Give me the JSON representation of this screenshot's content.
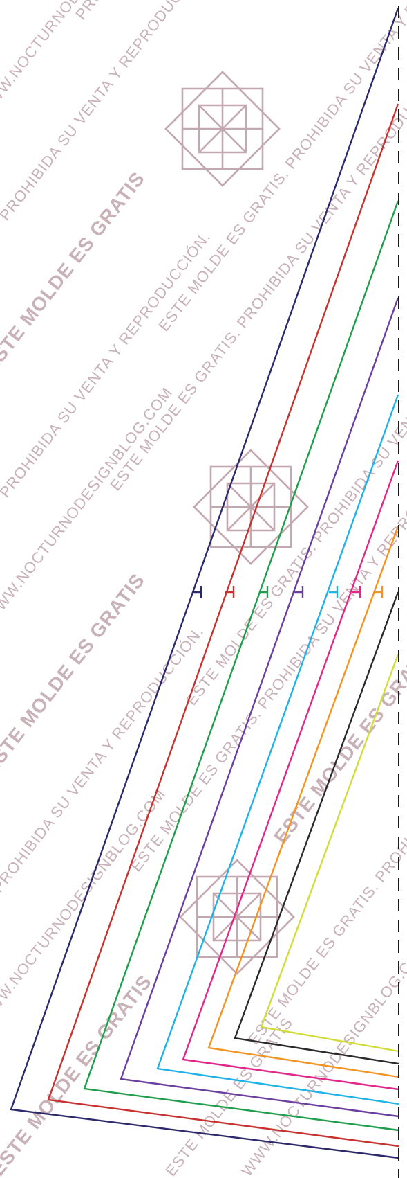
{
  "watermark": {
    "phrases": [
      "ESTE MOLDE ES GRATIS",
      "WWW.NOCTURNODESIGNBLOG.COM",
      "PROHIBIDA SU VENTA Y REPRODUCCIÓN.",
      "ESTE MOLDE ES GRATIS. PROHIBIDA SU VENTA Y REPRODUCCIÓN.",
      "ESTE MOLDE ES GRATIS. PROHIBIDA SU VENTA Y REPRODUCCIÓN. WWW.NOCTURNODESIGNBLOG.COM"
    ],
    "color": "#c8b2b8"
  },
  "ornament": {
    "icon": "star-ornament-icon",
    "color": "#c4a8b0",
    "count": 3
  },
  "pattern": {
    "sizes": [
      {
        "color": "#2c2a6b"
      },
      {
        "color": "#c8322e"
      },
      {
        "color": "#1f9e4b"
      },
      {
        "color": "#6b3fa0"
      },
      {
        "color": "#1fb2e8"
      },
      {
        "color": "#e2268a"
      },
      {
        "color": "#f39322"
      },
      {
        "color": "#2a2a2a"
      },
      {
        "color": "#d2dc3a"
      }
    ],
    "fold_line": {
      "style": "dashed",
      "color": "#1a1a1a"
    }
  }
}
